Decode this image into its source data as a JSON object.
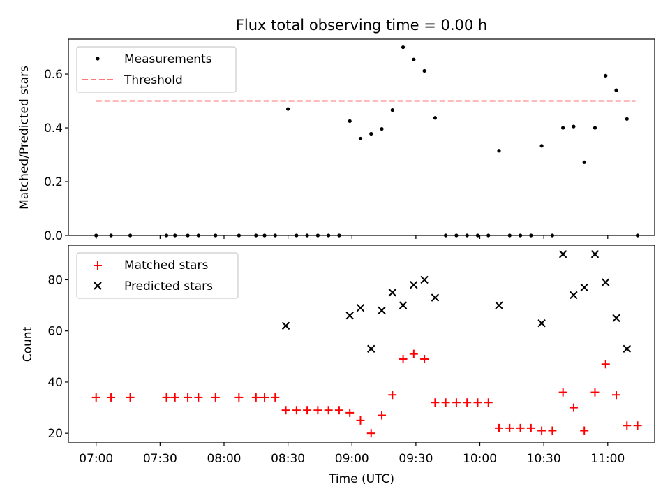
{
  "figure": {
    "title": "Flux total observing time = 0.00 h",
    "xlabel": "Time (UTC)",
    "x_ticks": [
      "07:00",
      "07:30",
      "08:00",
      "08:30",
      "09:00",
      "09:30",
      "10:00",
      "10:30",
      "11:00"
    ]
  },
  "chart_data": [
    {
      "type": "scatter",
      "panel": "top",
      "ylabel": "Matched/Predicted stars",
      "ylim": [
        0,
        0.73
      ],
      "yticks": [
        "0.0",
        "0.2",
        "0.4",
        "0.6"
      ],
      "xlim_minutes_after_0700": [
        -13,
        262
      ],
      "legend": {
        "placement": "upper-left",
        "entries": [
          "Measurements",
          "Threshold"
        ]
      },
      "threshold": {
        "name": "Threshold",
        "value": 0.5,
        "x_start": "07:00",
        "x_end": "11:13",
        "color": "#ff7777",
        "style": "dashed"
      },
      "series": [
        {
          "name": "Measurements",
          "marker": "dot",
          "color": "#000000",
          "x": [
            "07:00",
            "07:07",
            "07:16",
            "07:33",
            "07:37",
            "07:43",
            "07:48",
            "07:56",
            "08:07",
            "08:15",
            "08:19",
            "08:24",
            "08:30",
            "08:34",
            "08:39",
            "08:44",
            "08:49",
            "08:54",
            "08:59",
            "09:04",
            "09:09",
            "09:14",
            "09:19",
            "09:24",
            "09:29",
            "09:34",
            "09:39",
            "09:44",
            "09:49",
            "09:54",
            "09:59",
            "10:04",
            "10:09",
            "10:14",
            "10:19",
            "10:24",
            "10:29",
            "10:34",
            "10:39",
            "10:44",
            "10:49",
            "10:54",
            "10:59",
            "11:04",
            "11:09",
            "11:14"
          ],
          "y": [
            0,
            0,
            0,
            0,
            0,
            0,
            0,
            0,
            0,
            0,
            0,
            0,
            0.47,
            0,
            0,
            0,
            0,
            0,
            0.425,
            0.36,
            0.378,
            0.396,
            0.466,
            0.7,
            0.654,
            0.612,
            0.437,
            0,
            0,
            0,
            0,
            0,
            0.315,
            0,
            0,
            0,
            0.333,
            0,
            0.4,
            0.405,
            0.272,
            0.4,
            0.594,
            0.54,
            0.433,
            0
          ]
        }
      ]
    },
    {
      "type": "scatter",
      "panel": "bottom",
      "ylabel": "Count",
      "ylim": [
        16.5,
        93.5
      ],
      "yticks": [
        "20",
        "40",
        "60",
        "80"
      ],
      "legend": {
        "placement": "upper-left",
        "entries": [
          "Matched stars",
          "Predicted stars"
        ]
      },
      "series": [
        {
          "name": "Matched stars",
          "marker": "plus",
          "color": "#ff0000",
          "x": [
            "07:00",
            "07:07",
            "07:16",
            "07:33",
            "07:37",
            "07:43",
            "07:48",
            "07:56",
            "08:07",
            "08:15",
            "08:19",
            "08:24",
            "08:29",
            "08:34",
            "08:39",
            "08:44",
            "08:49",
            "08:54",
            "08:59",
            "09:04",
            "09:09",
            "09:14",
            "09:19",
            "09:24",
            "09:29",
            "09:34",
            "09:39",
            "09:44",
            "09:49",
            "09:54",
            "09:59",
            "10:04",
            "10:09",
            "10:14",
            "10:19",
            "10:24",
            "10:29",
            "10:34",
            "10:39",
            "10:44",
            "10:49",
            "10:54",
            "10:59",
            "11:04",
            "11:09",
            "11:14"
          ],
          "y": [
            34,
            34,
            34,
            34,
            34,
            34,
            34,
            34,
            34,
            34,
            34,
            34,
            29,
            29,
            29,
            29,
            29,
            29,
            28,
            25,
            20,
            27,
            35,
            49,
            51,
            49,
            32,
            32,
            32,
            32,
            32,
            32,
            22,
            22,
            22,
            22,
            21,
            21,
            36,
            30,
            21,
            36,
            47,
            35,
            23,
            23
          ]
        },
        {
          "name": "Predicted stars",
          "marker": "x",
          "color": "#000000",
          "x": [
            "08:29",
            "08:59",
            "09:04",
            "09:09",
            "09:14",
            "09:19",
            "09:24",
            "09:29",
            "09:34",
            "09:39",
            "10:09",
            "10:29",
            "10:39",
            "10:44",
            "10:49",
            "10:54",
            "10:59",
            "11:04",
            "11:09"
          ],
          "y": [
            62,
            66,
            69,
            53,
            68,
            75,
            70,
            78,
            80,
            73,
            70,
            63,
            90,
            74,
            77,
            90,
            79,
            65,
            53
          ]
        }
      ]
    }
  ]
}
